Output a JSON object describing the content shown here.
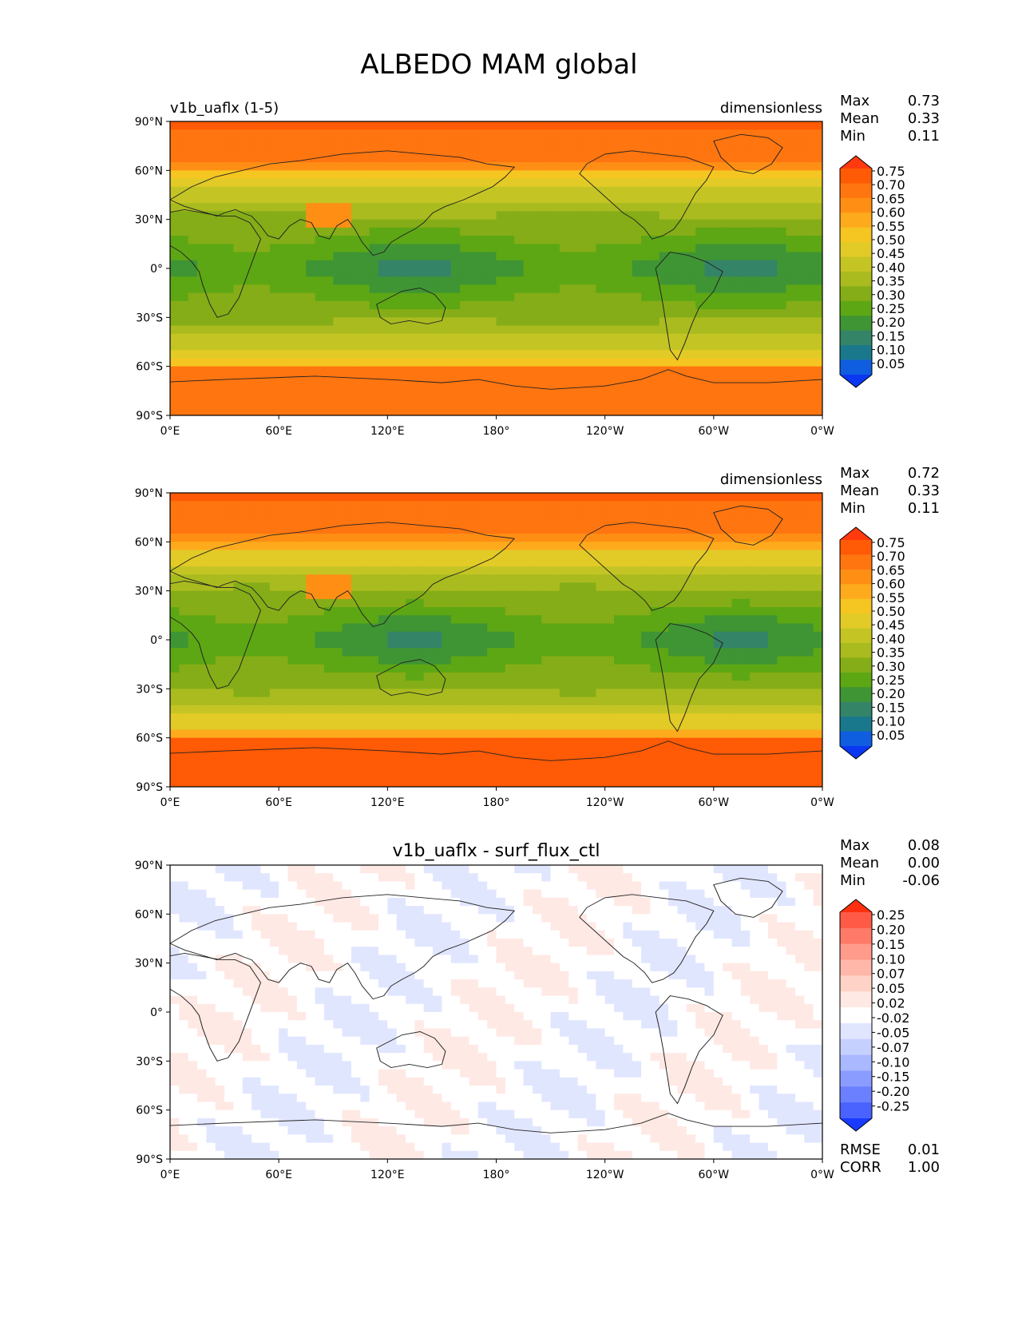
{
  "chart_data": {
    "type": "heatmap",
    "title": "ALBEDO MAM global",
    "lat_ticks": [
      "90°N",
      "60°N",
      "30°N",
      "0°",
      "30°S",
      "60°S",
      "90°S"
    ],
    "lon_ticks": [
      "0°E",
      "60°E",
      "120°E",
      "180°",
      "120°W",
      "60°W",
      "0°W"
    ],
    "lat_range": [
      -90,
      90
    ],
    "lon_range": [
      0,
      360
    ],
    "panels": [
      {
        "id": "test",
        "left_title": "v1b_uaflx (1-5)",
        "center_title": "",
        "units": "dimensionless",
        "stats": [
          {
            "label": "Max",
            "value": "0.73"
          },
          {
            "label": "Mean",
            "value": "0.33"
          },
          {
            "label": "Min",
            "value": "0.11"
          }
        ],
        "colorbar_levels": [
          "0.75",
          "0.70",
          "0.65",
          "0.60",
          "0.55",
          "0.50",
          "0.45",
          "0.40",
          "0.35",
          "0.30",
          "0.25",
          "0.20",
          "0.15",
          "0.10",
          "0.05"
        ],
        "colorbar_colors": [
          "#ff3a0f",
          "#ff5a05",
          "#ff7510",
          "#ff8f14",
          "#fdab1d",
          "#f5c521",
          "#e2cb27",
          "#c4c524",
          "#a9bb1f",
          "#85ad17",
          "#5da714",
          "#3f9534",
          "#348468",
          "#1a788c",
          "#0f5ee0",
          "#0a37f2"
        ]
      },
      {
        "id": "ref",
        "left_title": "",
        "center_title": "",
        "units": "dimensionless",
        "stats": [
          {
            "label": "Max",
            "value": "0.72"
          },
          {
            "label": "Mean",
            "value": "0.33"
          },
          {
            "label": "Min",
            "value": "0.11"
          }
        ],
        "colorbar_levels": [
          "0.75",
          "0.70",
          "0.65",
          "0.60",
          "0.55",
          "0.50",
          "0.45",
          "0.40",
          "0.35",
          "0.30",
          "0.25",
          "0.20",
          "0.15",
          "0.10",
          "0.05"
        ],
        "colorbar_colors": [
          "#ff3a0f",
          "#ff5a05",
          "#ff7510",
          "#ff8f14",
          "#fdab1d",
          "#f5c521",
          "#e2cb27",
          "#c4c524",
          "#a9bb1f",
          "#85ad17",
          "#5da714",
          "#3f9534",
          "#348468",
          "#1a788c",
          "#0f5ee0",
          "#0a37f2"
        ]
      },
      {
        "id": "diff",
        "left_title": "",
        "center_title": "v1b_uaflx - surf_flux_ctl",
        "units": "",
        "stats": [
          {
            "label": "Max",
            "value": "0.08"
          },
          {
            "label": "Mean",
            "value": "0.00"
          },
          {
            "label": "Min",
            "value": "-0.06"
          }
        ],
        "extra_stats": [
          {
            "label": "RMSE",
            "value": "0.01"
          },
          {
            "label": "CORR",
            "value": "1.00"
          }
        ],
        "colorbar_levels": [
          "0.25",
          "0.20",
          "0.15",
          "0.10",
          "0.07",
          "0.05",
          "0.02",
          "-0.02",
          "-0.05",
          "-0.07",
          "-0.10",
          "-0.15",
          "-0.20",
          "-0.25"
        ],
        "colorbar_colors": [
          "#ff3010",
          "#ff5a45",
          "#ff7a68",
          "#ff9b8a",
          "#ffb7aa",
          "#ffd2c8",
          "#ffe9e4",
          "#ffffff",
          "#e1e6ff",
          "#c6d0ff",
          "#a9b8ff",
          "#8a9cff",
          "#6a80ff",
          "#4a63ff",
          "#1a3bff"
        ]
      }
    ]
  }
}
